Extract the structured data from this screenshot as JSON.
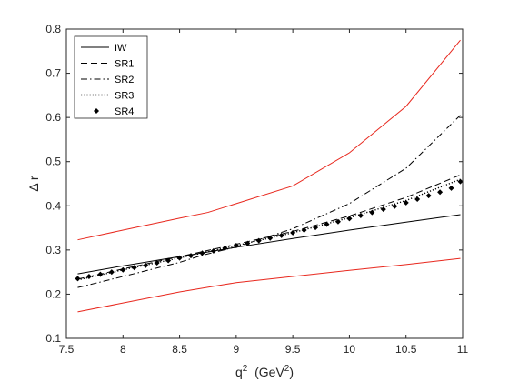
{
  "chart_data": {
    "type": "line",
    "title": "",
    "xlabel": "q",
    "xlabel_sup": "2",
    "xlabel_unit_open": "  (GeV",
    "xlabel_unit_sup": "2",
    "xlabel_unit_close": ")",
    "ylabel": "Δ r",
    "xlim": [
      7.5,
      11
    ],
    "ylim": [
      0.1,
      0.8
    ],
    "xticks": [
      "7.5",
      "8",
      "8.5",
      "9",
      "9.5",
      "10",
      "10.5",
      "11"
    ],
    "yticks": [
      "0.1",
      "0.2",
      "0.3",
      "0.4",
      "0.5",
      "0.6",
      "0.7",
      "0.8"
    ],
    "grid": false,
    "legend_position": "top-left",
    "series": [
      {
        "name": "IW",
        "style": "solid",
        "color": "#000000",
        "x": [
          7.6,
          8.0,
          8.5,
          9.0,
          9.5,
          10.0,
          10.5,
          10.98
        ],
        "y": [
          0.246,
          0.264,
          0.285,
          0.306,
          0.326,
          0.345,
          0.363,
          0.38
        ]
      },
      {
        "name": "SR1",
        "style": "dashed",
        "color": "#000000",
        "x": [
          7.6,
          8.0,
          8.5,
          9.0,
          9.5,
          10.0,
          10.5,
          10.98
        ],
        "y": [
          0.234,
          0.257,
          0.285,
          0.313,
          0.342,
          0.377,
          0.419,
          0.47
        ]
      },
      {
        "name": "SR2",
        "style": "dashdot",
        "color": "#000000",
        "x": [
          7.6,
          8.0,
          8.5,
          8.7,
          9.0,
          9.5,
          10.0,
          10.5,
          10.98
        ],
        "y": [
          0.215,
          0.24,
          0.272,
          0.288,
          0.307,
          0.348,
          0.405,
          0.485,
          0.605
        ]
      },
      {
        "name": "SR3",
        "style": "dotted",
        "color": "#000000",
        "x": [
          7.6,
          8.0,
          8.5,
          9.0,
          9.5,
          10.0,
          10.5,
          10.98
        ],
        "y": [
          0.232,
          0.255,
          0.282,
          0.31,
          0.339,
          0.373,
          0.412,
          0.46
        ]
      },
      {
        "name": "SR4",
        "style": "diamond",
        "color": "#000000",
        "x": [
          7.6,
          7.7,
          7.8,
          7.9,
          8.0,
          8.1,
          8.2,
          8.3,
          8.4,
          8.5,
          8.6,
          8.7,
          8.8,
          8.9,
          9.0,
          9.1,
          9.2,
          9.3,
          9.4,
          9.5,
          9.6,
          9.7,
          9.8,
          9.9,
          10.0,
          10.1,
          10.2,
          10.3,
          10.4,
          10.5,
          10.6,
          10.7,
          10.8,
          10.9,
          10.98
        ],
        "y": [
          0.235,
          0.24,
          0.245,
          0.25,
          0.255,
          0.26,
          0.265,
          0.271,
          0.276,
          0.282,
          0.287,
          0.293,
          0.298,
          0.304,
          0.31,
          0.315,
          0.321,
          0.327,
          0.333,
          0.339,
          0.345,
          0.351,
          0.358,
          0.364,
          0.371,
          0.378,
          0.385,
          0.392,
          0.399,
          0.407,
          0.415,
          0.423,
          0.431,
          0.44,
          0.455
        ]
      },
      {
        "style": "solid",
        "color": "#e8281e",
        "x": [
          7.6,
          8.0,
          8.5,
          8.75,
          9.0,
          9.5,
          10.0,
          10.5,
          10.98
        ],
        "y": [
          0.323,
          0.345,
          0.372,
          0.385,
          0.405,
          0.445,
          0.52,
          0.625,
          0.775
        ]
      },
      {
        "style": "solid",
        "color": "#e8281e",
        "x": [
          7.6,
          8.0,
          8.5,
          8.9,
          9.0,
          9.5,
          10.0,
          10.5,
          10.98
        ],
        "y": [
          0.16,
          0.18,
          0.205,
          0.222,
          0.226,
          0.24,
          0.254,
          0.267,
          0.281
        ]
      }
    ]
  }
}
